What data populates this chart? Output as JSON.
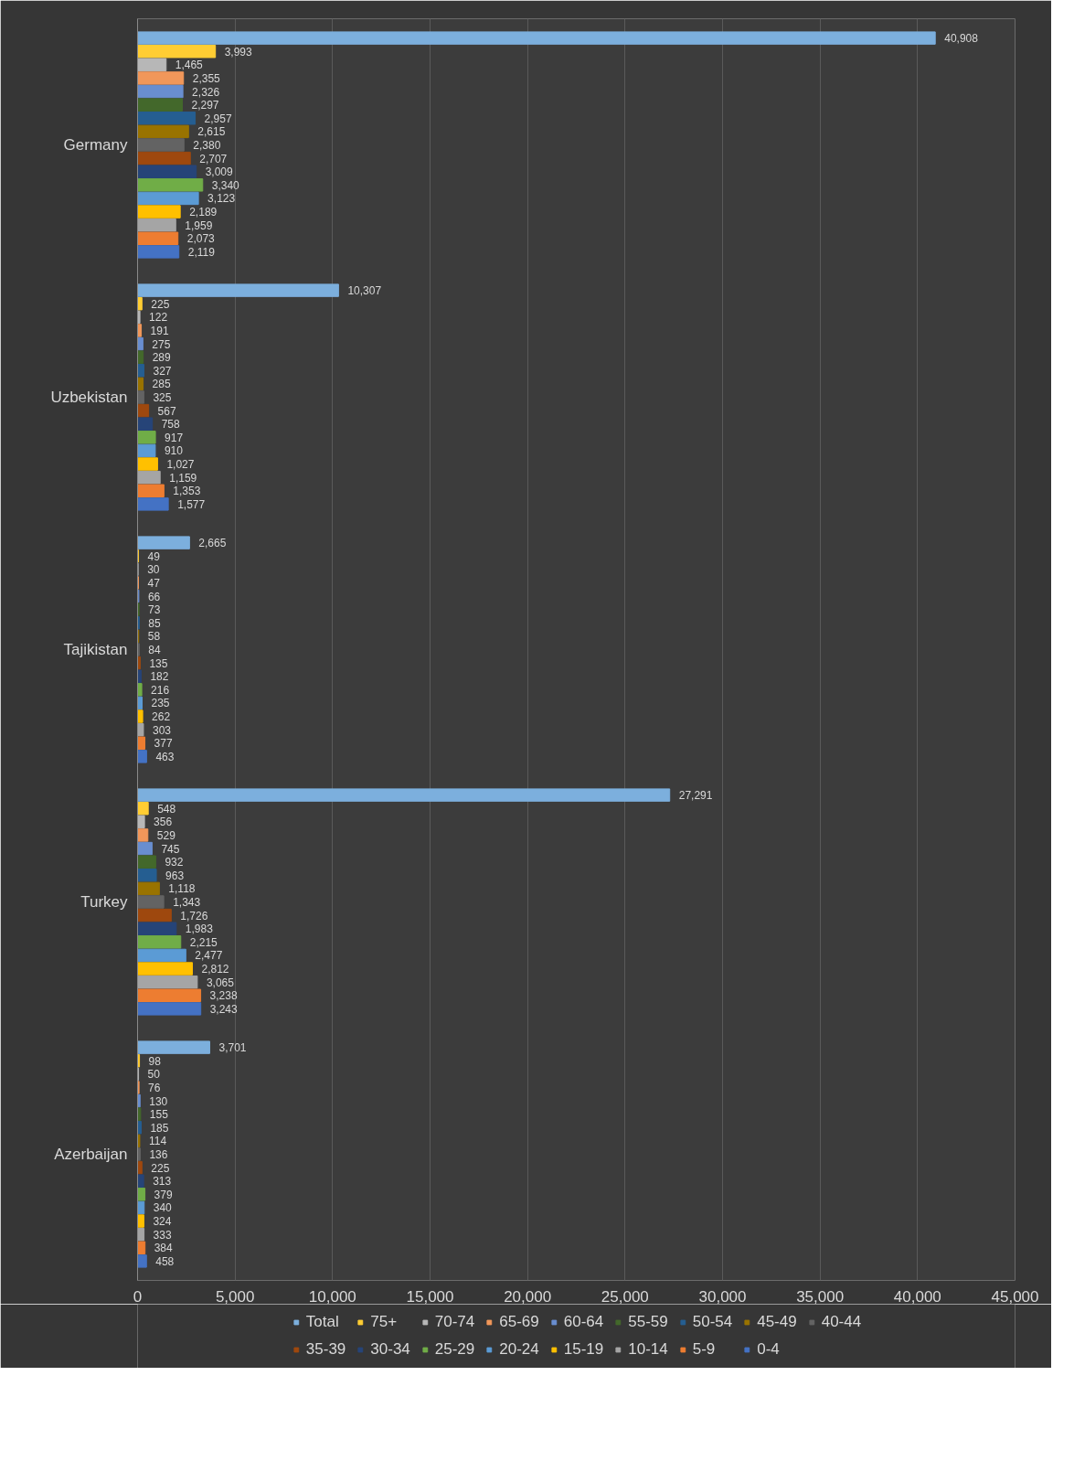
{
  "chart_data": {
    "type": "bar",
    "orientation": "horizontal",
    "categories": [
      "Germany",
      "Uzbekistan",
      "Tajikistan",
      "Turkey",
      "Azerbaijan"
    ],
    "series": [
      {
        "name": "Total",
        "color": "#7cafdd",
        "values": [
          40908,
          10307,
          2665,
          27291,
          3701
        ],
        "value_labels": [
          "40,908",
          "10,307",
          "2,665",
          "27,291",
          "3,701"
        ]
      },
      {
        "name": "75+",
        "color": "#ffcd33",
        "values": [
          3993,
          225,
          49,
          548,
          98
        ],
        "value_labels": [
          "3,993",
          "225",
          "49",
          "548",
          "98"
        ]
      },
      {
        "name": "70-74",
        "color": "#b7b7b7",
        "values": [
          1465,
          122,
          30,
          356,
          50
        ],
        "value_labels": [
          "1,465",
          "122",
          "30",
          "356",
          "50"
        ]
      },
      {
        "name": "65-69",
        "color": "#f1975a",
        "values": [
          2355,
          191,
          47,
          529,
          76
        ],
        "value_labels": [
          "2,355",
          "191",
          "47",
          "529",
          "76"
        ]
      },
      {
        "name": "60-64",
        "color": "#698ed0",
        "values": [
          2326,
          275,
          66,
          745,
          130
        ],
        "value_labels": [
          "2,326",
          "275",
          "66",
          "745",
          "130"
        ]
      },
      {
        "name": "55-59",
        "color": "#43682b",
        "values": [
          2297,
          289,
          73,
          932,
          155
        ],
        "value_labels": [
          "2,297",
          "289",
          "73",
          "932",
          "155"
        ]
      },
      {
        "name": "50-54",
        "color": "#255e91",
        "values": [
          2957,
          327,
          85,
          963,
          185
        ],
        "value_labels": [
          "2,957",
          "327",
          "85",
          "963",
          "185"
        ]
      },
      {
        "name": "45-49",
        "color": "#997300",
        "values": [
          2615,
          285,
          58,
          1118,
          114
        ],
        "value_labels": [
          "2,615",
          "285",
          "58",
          "1,118",
          "114"
        ]
      },
      {
        "name": "40-44",
        "color": "#636363",
        "values": [
          2380,
          325,
          84,
          1343,
          136
        ],
        "value_labels": [
          "2,380",
          "325",
          "84",
          "1,343",
          "136"
        ]
      },
      {
        "name": "35-39",
        "color": "#9e480e",
        "values": [
          2707,
          567,
          135,
          1726,
          225
        ],
        "value_labels": [
          "2,707",
          "567",
          "135",
          "1,726",
          "225"
        ]
      },
      {
        "name": "30-34",
        "color": "#264478",
        "values": [
          3009,
          758,
          182,
          1983,
          313
        ],
        "value_labels": [
          "3,009",
          "758",
          "182",
          "1,983",
          "313"
        ]
      },
      {
        "name": "25-29",
        "color": "#70ad47",
        "values": [
          3340,
          917,
          216,
          2215,
          379
        ],
        "value_labels": [
          "3,340",
          "917",
          "216",
          "2,215",
          "379"
        ]
      },
      {
        "name": "20-24",
        "color": "#5b9bd5",
        "values": [
          3123,
          910,
          235,
          2477,
          340
        ],
        "value_labels": [
          "3,123",
          "910",
          "235",
          "2,477",
          "340"
        ]
      },
      {
        "name": "15-19",
        "color": "#ffc000",
        "values": [
          2189,
          1027,
          262,
          2812,
          324
        ],
        "value_labels": [
          "2,189",
          "1,027",
          "262",
          "2,812",
          "324"
        ]
      },
      {
        "name": "10-14",
        "color": "#a5a5a5",
        "values": [
          1959,
          1159,
          303,
          3065,
          333
        ],
        "value_labels": [
          "1,959",
          "1,159",
          "303",
          "3,065",
          "333"
        ]
      },
      {
        "name": "5-9",
        "color": "#ed7d31",
        "values": [
          2073,
          1353,
          377,
          3238,
          384
        ],
        "value_labels": [
          "2,073",
          "1,353",
          "377",
          "3,238",
          "384"
        ]
      },
      {
        "name": "0-4",
        "color": "#4472c4",
        "values": [
          2119,
          1577,
          463,
          3243,
          458
        ],
        "value_labels": [
          "2,119",
          "1,577",
          "463",
          "3,243",
          "458"
        ]
      }
    ],
    "xlim": [
      0,
      45000
    ],
    "xticks": [
      0,
      {
        "value": 5000,
        "label": "5,000"
      },
      {
        "value": 10000,
        "label": "10,000"
      },
      {
        "value": 15000,
        "label": "15,000"
      },
      {
        "value": 20000,
        "label": "20,000"
      },
      {
        "value": 25000,
        "label": "25,000"
      },
      {
        "value": 30000,
        "label": "30,000"
      },
      {
        "value": 35000,
        "label": "35,000"
      },
      {
        "value": 40000,
        "label": "40,000"
      },
      {
        "value": 45000,
        "label": "45,000"
      }
    ],
    "grid": "x",
    "legend": "bottom"
  }
}
